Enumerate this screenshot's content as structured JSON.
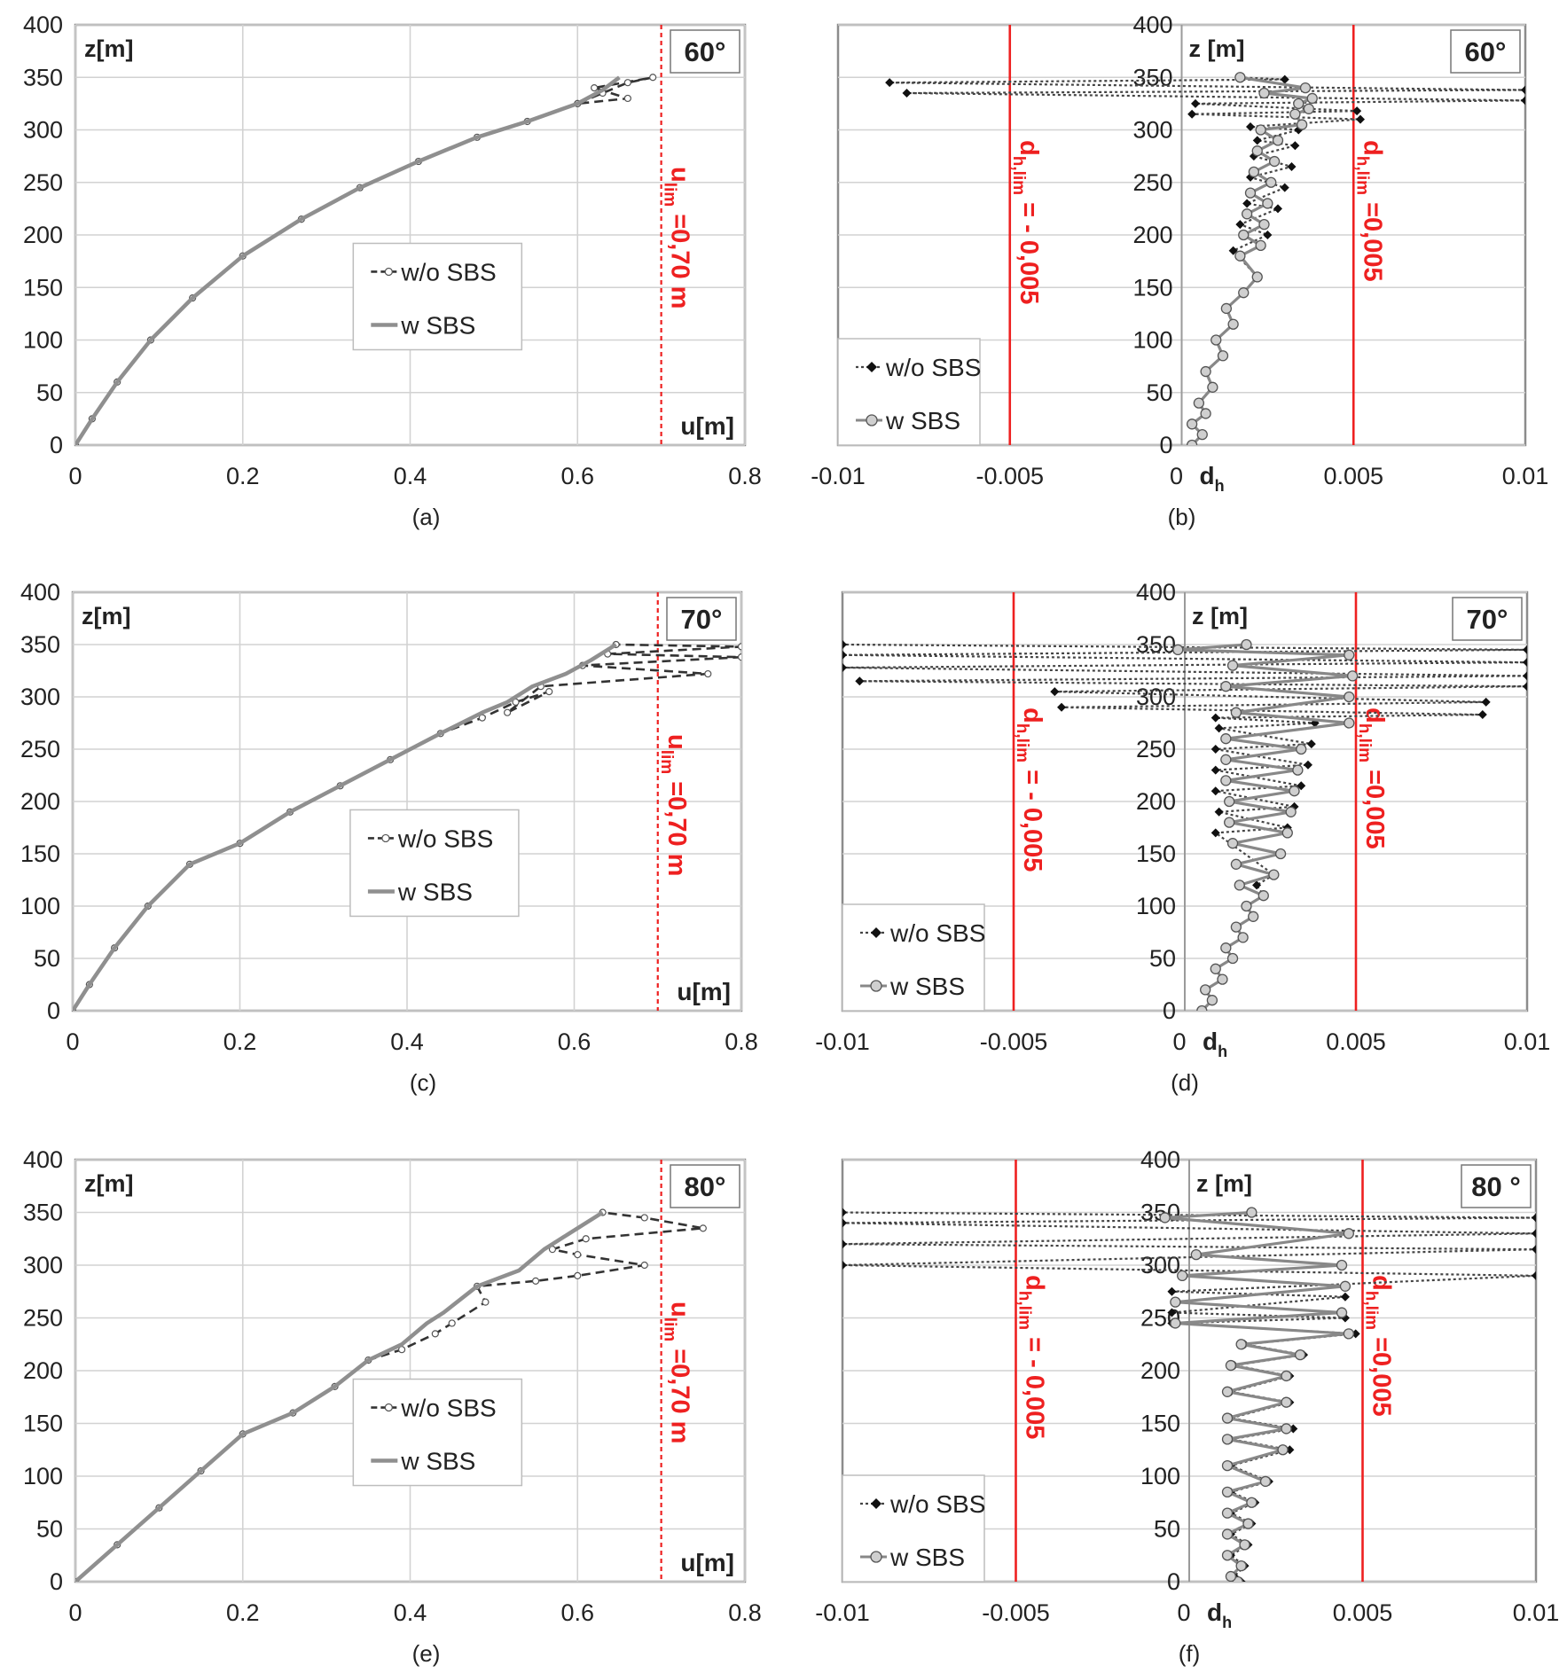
{
  "colors": {
    "frame": "#8c8c8c",
    "grid": "#d2d2d2",
    "limit": "#ee2020",
    "wo_line": "#333333",
    "w_line": "#8f8f8f",
    "wo_marker": "#111111",
    "w_marker_fill": "#cfcfcf",
    "w_marker_stroke": "#555555",
    "text": "#222222"
  },
  "chart_data": [
    {
      "id": "a",
      "caption": "(a)",
      "type": "line",
      "title": "60°",
      "ylabel": "z[m]",
      "xlabel": "u[m]",
      "xlim": [
        0,
        0.8
      ],
      "ylim": [
        0,
        400
      ],
      "xticks": [
        "0",
        "0.2",
        "0.4",
        "0.6",
        "0.8"
      ],
      "yticks": [
        "0",
        "50",
        "100",
        "150",
        "200",
        "250",
        "300",
        "350",
        "400"
      ],
      "legend_position": "center",
      "limit_lines": [
        {
          "x": 0.7,
          "label": "u",
          "sub": "lim",
          "rest": " =0,70 m"
        }
      ],
      "series": [
        {
          "name": "w/o SBS",
          "style": "dashed-open",
          "x": [
            0,
            0.02,
            0.05,
            0.09,
            0.14,
            0.2,
            0.27,
            0.34,
            0.41,
            0.48,
            0.54,
            0.6,
            0.63,
            0.66,
            0.69,
            0.62,
            0.66,
            0.6
          ],
          "y": [
            0,
            25,
            60,
            100,
            140,
            180,
            215,
            245,
            270,
            293,
            308,
            325,
            335,
            345,
            350,
            340,
            330,
            325
          ]
        },
        {
          "name": "w SBS",
          "style": "solid",
          "x": [
            0,
            0.02,
            0.05,
            0.09,
            0.14,
            0.2,
            0.27,
            0.34,
            0.41,
            0.48,
            0.54,
            0.6,
            0.63,
            0.65
          ],
          "y": [
            0,
            25,
            60,
            100,
            140,
            180,
            215,
            245,
            270,
            293,
            308,
            325,
            338,
            350
          ]
        }
      ]
    },
    {
      "id": "b",
      "caption": "(b)",
      "type": "line",
      "title": "60°",
      "ylabel": "z [m]",
      "xlabel": "d",
      "xlabel_sub": "h",
      "xlim": [
        -0.01,
        0.01
      ],
      "ylim": [
        0,
        400
      ],
      "xticks": [
        "-0.01",
        "-0.005",
        "0",
        "0.005",
        "0.01"
      ],
      "yticks": [
        "0",
        "50",
        "100",
        "150",
        "200",
        "250",
        "300",
        "350",
        "400"
      ],
      "legend_position": "bottom-left",
      "limit_lines": [
        {
          "x": -0.005,
          "label": "d",
          "sub": "h,lim",
          "rest": " = - 0,005"
        },
        {
          "x": 0.005,
          "label": "d",
          "sub": "h,lim",
          "rest": " =0,005"
        }
      ],
      "series": [
        {
          "name": "w/o SBS",
          "style": "dotted-filled",
          "x": [
            0.0003,
            0.0006,
            0.0003,
            0.0007,
            0.0005,
            0.0009,
            0.0007,
            0.0012,
            0.001,
            0.0015,
            0.0013,
            0.0018,
            0.0022,
            0.0015,
            0.0025,
            0.0017,
            0.0028,
            0.0019,
            0.003,
            0.002,
            0.0032,
            0.0021,
            0.0033,
            0.0022,
            0.0034,
            0.002,
            0.0052,
            0.0003,
            0.0051,
            0.0004,
            0.01,
            -0.008,
            0.01,
            -0.0085,
            0.003,
            0.0017
          ],
          "y": [
            0,
            10,
            20,
            30,
            40,
            55,
            70,
            85,
            100,
            115,
            130,
            145,
            160,
            185,
            200,
            210,
            225,
            230,
            245,
            255,
            265,
            275,
            285,
            290,
            300,
            303,
            310,
            315,
            318,
            325,
            328,
            335,
            338,
            345,
            348,
            350
          ]
        },
        {
          "name": "w SBS",
          "style": "dotted-open",
          "x": [
            0.0003,
            0.0006,
            0.0003,
            0.0007,
            0.0005,
            0.0009,
            0.0007,
            0.0012,
            0.001,
            0.0015,
            0.0013,
            0.0018,
            0.0022,
            0.0017,
            0.0023,
            0.0018,
            0.0024,
            0.0019,
            0.0025,
            0.002,
            0.0026,
            0.0021,
            0.0027,
            0.0022,
            0.0028,
            0.0023,
            0.0035,
            0.0033,
            0.0037,
            0.0034,
            0.0038,
            0.0024,
            0.0036,
            0.0017
          ],
          "y": [
            0,
            10,
            20,
            30,
            40,
            55,
            70,
            85,
            100,
            115,
            130,
            145,
            160,
            180,
            190,
            200,
            210,
            220,
            230,
            240,
            250,
            260,
            270,
            280,
            290,
            300,
            305,
            315,
            320,
            325,
            330,
            335,
            340,
            350
          ]
        }
      ]
    },
    {
      "id": "c",
      "caption": "(c)",
      "type": "line",
      "title": "70°",
      "ylabel": "z[m]",
      "xlabel": "u[m]",
      "xlim": [
        0,
        0.8
      ],
      "ylim": [
        0,
        400
      ],
      "xticks": [
        "0",
        "0.2",
        "0.4",
        "0.6",
        "0.8"
      ],
      "yticks": [
        "0",
        "50",
        "100",
        "150",
        "200",
        "250",
        "300",
        "350",
        "400"
      ],
      "legend_position": "center",
      "limit_lines": [
        {
          "x": 0.7,
          "label": "u",
          "sub": "lim",
          "rest": " =0,70 m"
        }
      ],
      "series": [
        {
          "name": "w/o SBS",
          "style": "dashed-open",
          "x": [
            0,
            0.02,
            0.05,
            0.09,
            0.14,
            0.2,
            0.26,
            0.32,
            0.38,
            0.44,
            0.49,
            0.53,
            0.57,
            0.52,
            0.56,
            0.76,
            0.61,
            0.8,
            0.64,
            0.8,
            0.65
          ],
          "y": [
            0,
            25,
            60,
            100,
            140,
            160,
            190,
            215,
            240,
            265,
            280,
            295,
            305,
            285,
            310,
            322,
            330,
            338,
            341,
            348,
            350
          ]
        },
        {
          "name": "w SBS",
          "style": "solid",
          "x": [
            0,
            0.02,
            0.05,
            0.09,
            0.14,
            0.2,
            0.26,
            0.32,
            0.38,
            0.44,
            0.49,
            0.52,
            0.55,
            0.59,
            0.62,
            0.65
          ],
          "y": [
            0,
            25,
            60,
            100,
            140,
            160,
            190,
            215,
            240,
            265,
            285,
            295,
            310,
            322,
            335,
            350
          ]
        }
      ]
    },
    {
      "id": "d",
      "caption": "(d)",
      "type": "line",
      "title": "70°",
      "ylabel": "z [m]",
      "xlabel": "d",
      "xlabel_sub": "h",
      "xlim": [
        -0.01,
        0.01
      ],
      "ylim": [
        0,
        400
      ],
      "xticks": [
        "-0.01",
        "-0.005",
        "0",
        "0.005",
        "0.01"
      ],
      "yticks": [
        "0",
        "50",
        "100",
        "150",
        "200",
        "250",
        "300",
        "350",
        "400"
      ],
      "legend_position": "bottom-left",
      "limit_lines": [
        {
          "x": -0.005,
          "label": "d",
          "sub": "h,lim",
          "rest": " = - 0,005"
        },
        {
          "x": 0.005,
          "label": "d",
          "sub": "h,lim",
          "rest": " =0,005"
        }
      ],
      "series": [
        {
          "name": "w/o SBS",
          "style": "dotted-filled",
          "x": [
            0.0005,
            0.0008,
            0.0006,
            0.0011,
            0.0009,
            0.0014,
            0.0012,
            0.0017,
            0.0015,
            0.002,
            0.0018,
            0.0023,
            0.0021,
            0.0026,
            0.0009,
            0.003,
            0.001,
            0.0032,
            0.0009,
            0.0034,
            0.0009,
            0.0036,
            0.0009,
            0.0037,
            0.001,
            0.0038,
            0.0009,
            0.0087,
            -0.0036,
            0.0088,
            -0.0038,
            0.01,
            -0.0095,
            0.01,
            -0.01,
            0.01,
            -0.01,
            0.01,
            -0.01
          ],
          "y": [
            0,
            10,
            20,
            30,
            40,
            50,
            60,
            70,
            80,
            90,
            100,
            110,
            120,
            130,
            170,
            175,
            190,
            195,
            210,
            215,
            230,
            235,
            250,
            255,
            270,
            275,
            280,
            283,
            290,
            295,
            305,
            310,
            315,
            320,
            328,
            333,
            340,
            345,
            350
          ]
        },
        {
          "name": "w SBS",
          "style": "dotted-open",
          "x": [
            0.0005,
            0.0008,
            0.0006,
            0.0011,
            0.0009,
            0.0014,
            0.0012,
            0.0017,
            0.0015,
            0.002,
            0.0018,
            0.0023,
            0.0016,
            0.0026,
            0.0015,
            0.0028,
            0.0014,
            0.003,
            0.0013,
            0.0031,
            0.0013,
            0.0032,
            0.0012,
            0.0033,
            0.0012,
            0.0034,
            0.0012,
            0.0048,
            0.0015,
            0.0048,
            0.0012,
            0.0049,
            0.0014,
            0.0048,
            -0.0002,
            0.0018
          ],
          "y": [
            0,
            10,
            20,
            30,
            40,
            50,
            60,
            70,
            80,
            90,
            100,
            110,
            120,
            130,
            140,
            150,
            160,
            170,
            180,
            190,
            200,
            210,
            220,
            230,
            240,
            250,
            260,
            275,
            285,
            300,
            310,
            320,
            330,
            340,
            345,
            350
          ]
        }
      ]
    },
    {
      "id": "e",
      "caption": "(e)",
      "type": "line",
      "title": "80°",
      "ylabel": "z[m]",
      "xlabel": "u[m]",
      "xlim": [
        0,
        0.8
      ],
      "ylim": [
        0,
        400
      ],
      "xticks": [
        "0",
        "0.2",
        "0.4",
        "0.6",
        "0.8"
      ],
      "yticks": [
        "0",
        "50",
        "100",
        "150",
        "200",
        "250",
        "300",
        "350",
        "400"
      ],
      "legend_position": "center",
      "limit_lines": [
        {
          "x": 0.7,
          "label": "u",
          "sub": "lim",
          "rest": " =0,70 m"
        }
      ],
      "series": [
        {
          "name": "w/o SBS",
          "style": "dashed-open",
          "x": [
            0,
            0.05,
            0.1,
            0.15,
            0.2,
            0.26,
            0.31,
            0.35,
            0.39,
            0.43,
            0.45,
            0.49,
            0.48,
            0.55,
            0.6,
            0.68,
            0.6,
            0.57,
            0.61,
            0.75,
            0.68,
            0.63
          ],
          "y": [
            0,
            35,
            70,
            105,
            140,
            160,
            185,
            210,
            220,
            235,
            245,
            265,
            280,
            285,
            290,
            300,
            310,
            315,
            325,
            335,
            345,
            350
          ]
        },
        {
          "name": "w SBS",
          "style": "solid",
          "x": [
            0,
            0.05,
            0.1,
            0.15,
            0.2,
            0.26,
            0.31,
            0.35,
            0.39,
            0.42,
            0.44,
            0.48,
            0.53,
            0.56,
            0.59,
            0.63
          ],
          "y": [
            0,
            35,
            70,
            105,
            140,
            160,
            185,
            210,
            225,
            245,
            255,
            280,
            295,
            315,
            330,
            350
          ]
        }
      ]
    },
    {
      "id": "f",
      "caption": "(f)",
      "type": "line",
      "title": "80 °",
      "ylabel": "z [m]",
      "xlabel": "d",
      "xlabel_sub": "h",
      "xlim": [
        -0.01,
        0.01
      ],
      "ylim": [
        0,
        400
      ],
      "xticks": [
        "-0.01",
        "-0.005",
        "0",
        "0.005",
        "0.01"
      ],
      "yticks": [
        "0",
        "50",
        "100",
        "150",
        "200",
        "250",
        "300",
        "350",
        "400"
      ],
      "legend_position": "bottom-left",
      "limit_lines": [
        {
          "x": -0.005,
          "label": "d",
          "sub": "h,lim",
          "rest": " = - 0,005"
        },
        {
          "x": 0.005,
          "label": "d",
          "sub": "h,lim",
          "rest": " =0,005"
        }
      ],
      "series": [
        {
          "name": "w/o SBS",
          "style": "dotted-filled",
          "x": [
            0.0015,
            0.0013,
            0.0016,
            0.0012,
            0.0017,
            0.0012,
            0.0018,
            0.0012,
            0.0019,
            0.0012,
            0.0023,
            0.0012,
            0.0029,
            0.0012,
            0.003,
            0.0012,
            0.0029,
            0.0012,
            0.0029,
            0.0013,
            0.0033,
            0.0016,
            0.0048,
            -0.0005,
            0.0045,
            -0.0005,
            0.0045,
            -0.0005,
            0.01,
            -0.01,
            0.01,
            -0.01,
            0.01,
            -0.01,
            0.01,
            -0.01
          ],
          "y": [
            0,
            5,
            15,
            25,
            35,
            45,
            55,
            65,
            75,
            85,
            95,
            110,
            125,
            135,
            145,
            155,
            170,
            180,
            195,
            205,
            215,
            225,
            235,
            245,
            250,
            255,
            270,
            275,
            290,
            300,
            315,
            320,
            330,
            340,
            345,
            350
          ]
        },
        {
          "name": "w SBS",
          "style": "dotted-open",
          "x": [
            0.0014,
            0.0012,
            0.0015,
            0.0011,
            0.0016,
            0.0011,
            0.0017,
            0.0011,
            0.0018,
            0.0011,
            0.0022,
            0.0011,
            0.0027,
            0.0011,
            0.0028,
            0.0011,
            0.0028,
            0.0011,
            0.0028,
            0.0012,
            0.0032,
            0.0015,
            0.0046,
            -0.0004,
            0.0044,
            -0.0004,
            0.0045,
            -0.0002,
            0.0044,
            0.0002,
            0.0046,
            -0.0007,
            0.0018
          ],
          "y": [
            0,
            5,
            15,
            25,
            35,
            45,
            55,
            65,
            75,
            85,
            95,
            110,
            125,
            135,
            145,
            155,
            170,
            180,
            195,
            205,
            215,
            225,
            235,
            245,
            255,
            265,
            280,
            290,
            300,
            310,
            330,
            345,
            350
          ]
        }
      ]
    }
  ]
}
